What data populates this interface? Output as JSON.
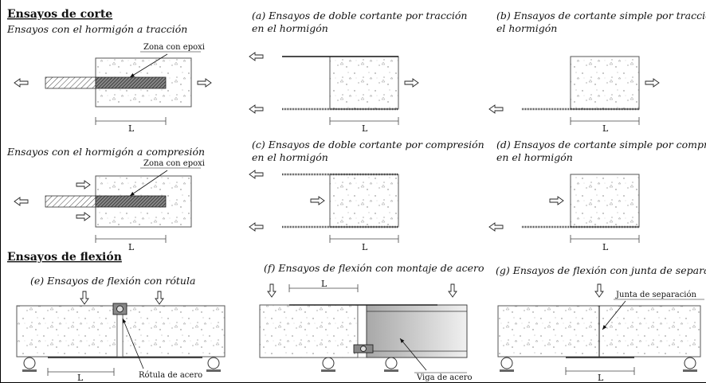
{
  "headings": {
    "shear": "Ensayos  de corte",
    "flexion": "Ensayos de flexión"
  },
  "subheadings": {
    "tension": "Ensayos con el  hormigón a tracción",
    "compression": "Ensayos con el  hormigón a compresión"
  },
  "captions": {
    "a_line1": "(a) Ensayos de doble cortante por tracción",
    "a_line2": "en el hormigón",
    "b_line1": "(b) Ensayos de cortante simple por tracción en",
    "b_line2": "el hormigón",
    "c_line1": "(c) Ensayos de doble cortante por compresión",
    "c_line2": "en el hormigón",
    "d_line1": "(d) Ensayos de cortante simple por compresión",
    "d_line2": "en el hormigón",
    "e": "(e) Ensayos de flexión con rótula",
    "f": "(f) Ensayos de flexión con montaje de acero",
    "g": "(g) Ensayos de flexión con junta de separación"
  },
  "labels": {
    "epoxy_zone": "Zona con epoxi",
    "length": "L",
    "hinge": "Rótula de acero",
    "steel_beam": "Viga de acero",
    "joint": "Junta de separación"
  }
}
